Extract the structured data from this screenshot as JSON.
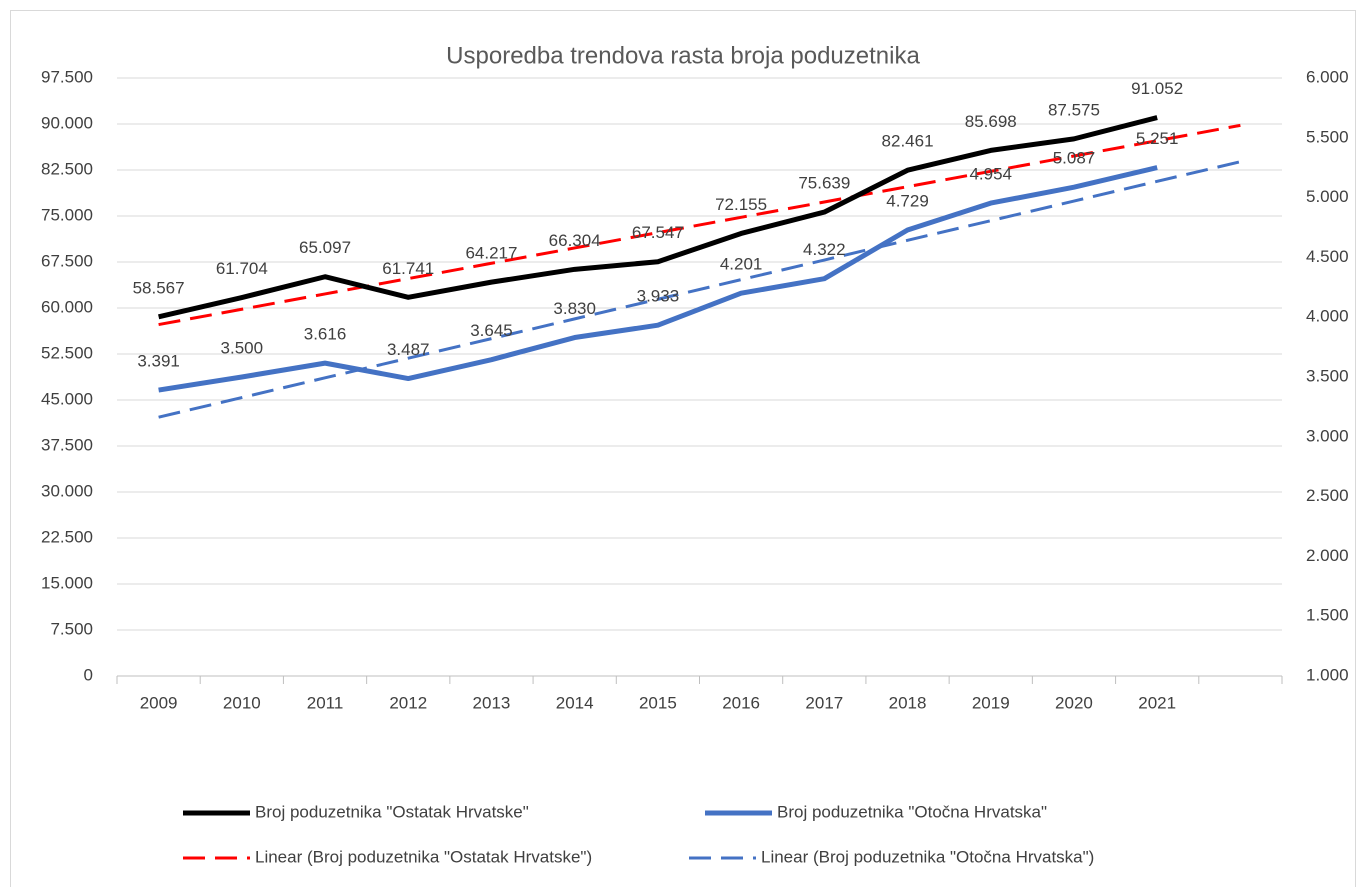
{
  "chart_data": {
    "type": "line",
    "title": "Usporedba trendova rasta broja poduzetnika",
    "categories": [
      "2009",
      "2010",
      "2011",
      "2012",
      "2013",
      "2014",
      "2015",
      "2016",
      "2017",
      "2018",
      "2019",
      "2020",
      "2021",
      null
    ],
    "ylim": [
      0,
      97500
    ],
    "yticks": [
      0,
      {
        "value": 7500,
        "label": "7.500"
      },
      {
        "value": 15000,
        "label": "15.000"
      },
      {
        "value": 22500,
        "label": "22.500"
      },
      {
        "value": 30000,
        "label": "30.000"
      },
      {
        "value": 37500,
        "label": "37.500"
      },
      {
        "value": 45000,
        "label": "45.000"
      },
      {
        "value": 52500,
        "label": "52.500"
      },
      {
        "value": 60000,
        "label": "60.000"
      },
      {
        "value": 67500,
        "label": "67.500"
      },
      {
        "value": 75000,
        "label": "75.000"
      },
      {
        "value": 82500,
        "label": "82.500"
      },
      {
        "value": 90000,
        "label": "90.000"
      },
      {
        "value": 97500,
        "label": "97.500"
      }
    ],
    "y2lim": [
      1000,
      6000
    ],
    "y2ticks": [
      {
        "value": 1000,
        "label": "1.000"
      },
      {
        "value": 1500,
        "label": "1.500"
      },
      {
        "value": 2000,
        "label": "2.000"
      },
      {
        "value": 2500,
        "label": "2.500"
      },
      {
        "value": 3000,
        "label": "3.000"
      },
      {
        "value": 3500,
        "label": "3.500"
      },
      {
        "value": 4000,
        "label": "4.000"
      },
      {
        "value": 4500,
        "label": "4.500"
      },
      {
        "value": 5000,
        "label": "5.000"
      },
      {
        "value": 5500,
        "label": "5.500"
      },
      {
        "value": 6000,
        "label": "6.000"
      }
    ],
    "grid": true,
    "legend": "bottom",
    "series": [
      {
        "name": "Broj poduzetnika \"Ostatak Hrvatske\"",
        "color": "#000000",
        "dash": false,
        "values": [
          58567,
          61704,
          65097,
          61741,
          64217,
          66304,
          67547,
          72155,
          75639,
          82461,
          85698,
          87575,
          91052,
          null
        ],
        "value_labels": [
          "58.567",
          "61.704",
          "65.097",
          "61.741",
          "64.217",
          "66.304",
          "67.547",
          "72.155",
          "75.639",
          "82.461",
          "85.698",
          "87.575",
          "91.052",
          null
        ]
      },
      {
        "name": "Broj poduzetnika \"Otočna Hrvatska\"",
        "color": "#4472c4",
        "dash": false,
        "axis": "y2",
        "values": [
          3391,
          3500,
          3616,
          3487,
          3645,
          3830,
          3933,
          4201,
          4322,
          4729,
          4954,
          5087,
          5251,
          null
        ],
        "value_labels": [
          "3.391",
          "3.500",
          "3.616",
          "3.487",
          "3.645",
          "3.830",
          "3.933",
          "4.201",
          "4.322",
          "4.729",
          "4.954",
          "5.087",
          "5.251",
          null
        ]
      },
      {
        "name": "Linear (Broj poduzetnika \"Ostatak Hrvatske\")",
        "color": "#ff0000",
        "dash": true,
        "values": [
          57298,
          59796,
          62295,
          64793,
          67292,
          69790,
          72289,
          74788,
          77286,
          79785,
          82283,
          84782,
          87280,
          89779
        ]
      },
      {
        "name": "Linear (Broj poduzetnika \"Otočna Hrvatska\")",
        "color": "#4472c4",
        "dash": true,
        "axis": "y2",
        "values": [
          3164,
          3328,
          3493,
          3657,
          3821,
          3986,
          4150,
          4314,
          4478,
          4643,
          4807,
          4971,
          5136,
          5300
        ]
      }
    ]
  }
}
